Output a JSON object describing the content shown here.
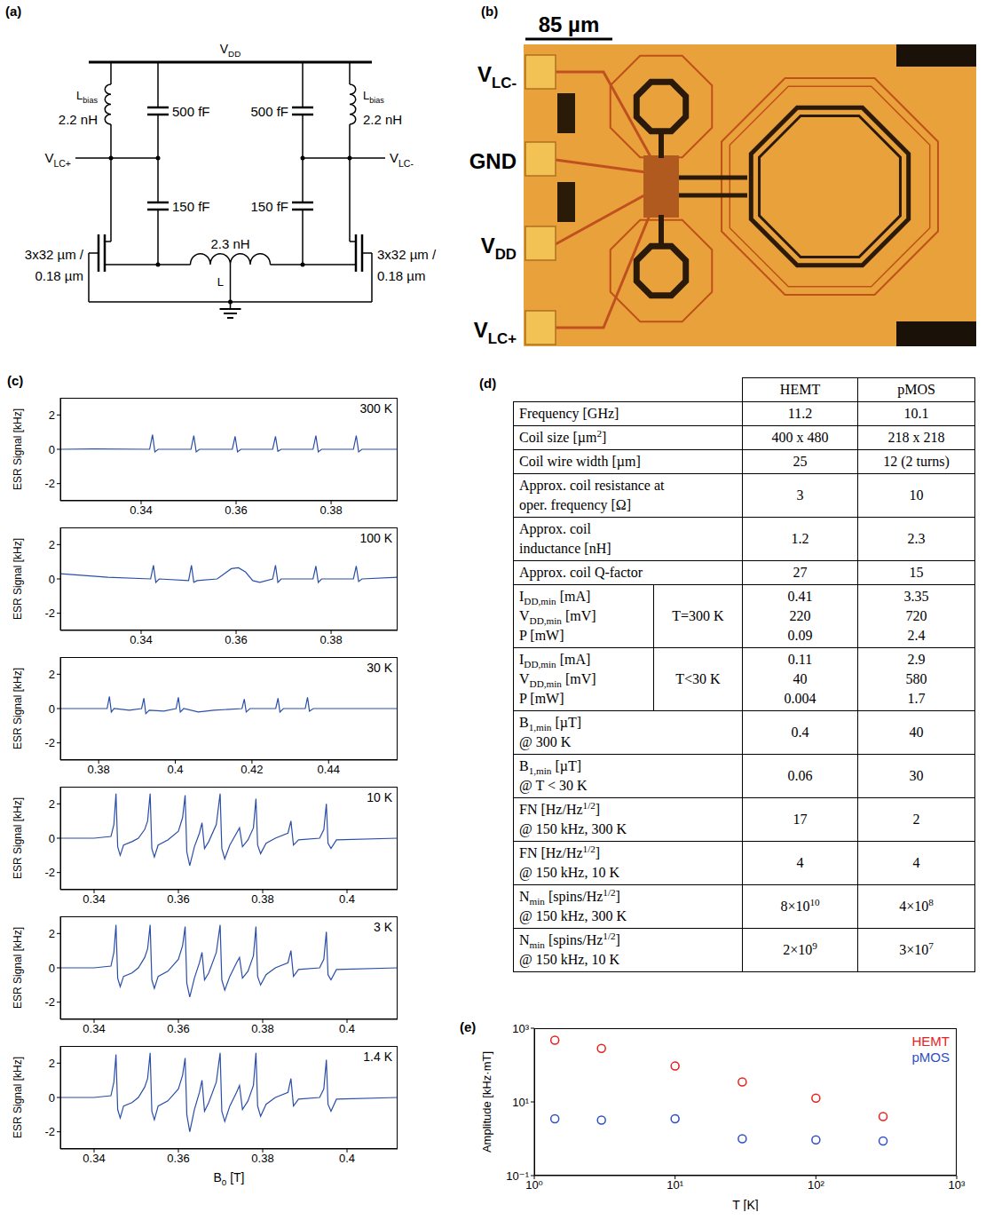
{
  "circuit": {
    "panel": "(a)",
    "supply": [
      "V",
      {
        "sub": "DD"
      }
    ],
    "bias_inductor": {
      "name": [
        "L",
        {
          "sub": "bias"
        }
      ],
      "value": "2.2 nH"
    },
    "supply_capacitor": "500 fF",
    "feedback_capacitor": "150 fF",
    "outputs": {
      "left": [
        "V",
        {
          "sub": "LC+"
        }
      ],
      "right": [
        "V",
        {
          "sub": "LC-"
        }
      ]
    },
    "transistor": [
      "3x32 µm /",
      "0.18 µm"
    ],
    "tank_inductor": {
      "name": "L",
      "value": "2.3 nH"
    }
  },
  "micrograph": {
    "panel": "(b)",
    "scale_bar": "85 µm",
    "pads": [
      [
        "V",
        {
          "sub": "LC-"
        }
      ],
      "GND",
      [
        "V",
        {
          "sub": "DD"
        }
      ],
      [
        "V",
        {
          "sub": "LC+"
        }
      ]
    ]
  },
  "chart_data": [
    {
      "type": "line",
      "panel": "(c)",
      "annotation": "300 K",
      "y_label": "ESR Signal [kHz]",
      "color": "#2a4ea8",
      "grid": false,
      "xlim": [
        0.323,
        0.394
      ],
      "xticks": [
        0.34,
        0.36,
        0.38
      ],
      "ylim": [
        -3,
        3
      ],
      "yticks": [
        -2,
        0,
        2
      ],
      "x": [
        0.323,
        0.33,
        0.3418,
        0.3424,
        0.3429,
        0.3436,
        0.3505,
        0.3511,
        0.3516,
        0.3523,
        0.3592,
        0.3598,
        0.3603,
        0.361,
        0.3677,
        0.3683,
        0.3688,
        0.3695,
        0.3762,
        0.3768,
        0.3773,
        0.378,
        0.3847,
        0.3853,
        0.3858,
        0.3865,
        0.394
      ],
      "values": [
        0,
        0.02,
        0,
        0.85,
        -0.15,
        0,
        0,
        0.8,
        -0.15,
        0,
        0,
        0.75,
        -0.15,
        0,
        0,
        0.75,
        -0.12,
        0,
        0,
        0.8,
        -0.15,
        0,
        0,
        0.8,
        -0.15,
        0,
        0
      ]
    },
    {
      "type": "line",
      "annotation": "100 K",
      "y_label": "ESR Signal [kHz]",
      "color": "#2a4ea8",
      "grid": false,
      "xlim": [
        0.323,
        0.394
      ],
      "xticks": [
        0.34,
        0.36,
        0.38
      ],
      "ylim": [
        -3,
        3
      ],
      "yticks": [
        -2,
        0,
        2
      ],
      "x": [
        0.323,
        0.333,
        0.342,
        0.3426,
        0.3431,
        0.3438,
        0.35,
        0.3506,
        0.3511,
        0.3518,
        0.356,
        0.3575,
        0.359,
        0.3605,
        0.362,
        0.3635,
        0.365,
        0.3677,
        0.3683,
        0.3688,
        0.3695,
        0.3762,
        0.3768,
        0.3773,
        0.378,
        0.3847,
        0.3853,
        0.3858,
        0.3865,
        0.394
      ],
      "values": [
        0.3,
        0.1,
        0,
        0.8,
        -0.2,
        0,
        -0.1,
        0.8,
        -0.2,
        -0.1,
        0,
        0.3,
        0.6,
        0.65,
        0.4,
        -0.1,
        -0.2,
        0,
        0.8,
        -0.2,
        0,
        0,
        0.75,
        -0.2,
        0,
        0,
        0.75,
        -0.15,
        0,
        0.1
      ]
    },
    {
      "type": "line",
      "annotation": "30 K",
      "y_label": "ESR Signal [kHz]",
      "color": "#2a4ea8",
      "grid": false,
      "xlim": [
        0.37,
        0.458
      ],
      "xticks": [
        0.38,
        0.4,
        0.42,
        0.44
      ],
      "ylim": [
        -3,
        3
      ],
      "yticks": [
        -2,
        0,
        2
      ],
      "x": [
        0.37,
        0.3822,
        0.3828,
        0.3833,
        0.384,
        0.388,
        0.3912,
        0.3918,
        0.3923,
        0.3932,
        0.397,
        0.4002,
        0.4008,
        0.4013,
        0.4022,
        0.406,
        0.41,
        0.4174,
        0.418,
        0.4185,
        0.4195,
        0.4262,
        0.4268,
        0.4273,
        0.4282,
        0.4339,
        0.4345,
        0.435,
        0.436,
        0.458
      ],
      "values": [
        0,
        0,
        0.7,
        -0.2,
        0,
        -0.1,
        0,
        0.6,
        -0.3,
        -0.1,
        -0.15,
        0,
        0.65,
        -0.2,
        0,
        -0.2,
        -0.1,
        0,
        0.55,
        -0.2,
        0,
        0,
        0.6,
        -0.2,
        0,
        0,
        0.65,
        -0.15,
        0,
        0
      ]
    },
    {
      "type": "line",
      "annotation": "10 K",
      "y_label": "ESR Signal [kHz]",
      "color": "#2a4ea8",
      "grid": false,
      "xlim": [
        0.332,
        0.412
      ],
      "xticks": [
        0.34,
        0.36,
        0.38,
        0.4
      ],
      "ylim": [
        -3,
        3
      ],
      "yticks": [
        -2,
        0,
        2
      ],
      "x": [
        0.332,
        0.34,
        0.344,
        0.3447,
        0.3452,
        0.3456,
        0.3462,
        0.347,
        0.349,
        0.3505,
        0.352,
        0.3527,
        0.3533,
        0.3537,
        0.3543,
        0.3552,
        0.3575,
        0.36,
        0.361,
        0.3616,
        0.362,
        0.3627,
        0.3638,
        0.365,
        0.3656,
        0.3662,
        0.3672,
        0.369,
        0.3699,
        0.3703,
        0.371,
        0.3722,
        0.3738,
        0.3745,
        0.3752,
        0.3765,
        0.3778,
        0.3784,
        0.3788,
        0.3795,
        0.3808,
        0.383,
        0.386,
        0.3867,
        0.3873,
        0.3885,
        0.3935,
        0.3945,
        0.3951,
        0.3955,
        0.3962,
        0.3975,
        0.412
      ],
      "values": [
        0,
        0,
        0.1,
        0.8,
        2.6,
        -0.5,
        -1.0,
        -0.4,
        -0.2,
        0,
        0.5,
        1.0,
        2.6,
        -0.6,
        -1.1,
        -0.4,
        -0.1,
        0.4,
        1.2,
        2.5,
        -0.8,
        -1.6,
        -0.5,
        0.3,
        0.9,
        -0.6,
        -0.2,
        0.8,
        2.6,
        -0.6,
        -1.2,
        -0.4,
        0.3,
        0.6,
        -0.5,
        -0.1,
        0.6,
        2.3,
        -0.4,
        -0.9,
        -0.3,
        0,
        0.3,
        1.0,
        -0.4,
        -0.1,
        0,
        0.5,
        2.0,
        -0.3,
        -0.6,
        -0.1,
        0
      ]
    },
    {
      "type": "line",
      "annotation": "3 K",
      "y_label": "ESR Signal [kHz]",
      "color": "#2a4ea8",
      "grid": false,
      "xlim": [
        0.332,
        0.412
      ],
      "xticks": [
        0.34,
        0.36,
        0.38,
        0.4
      ],
      "ylim": [
        -3,
        3
      ],
      "yticks": [
        -2,
        0,
        2
      ],
      "x": [
        0.332,
        0.34,
        0.344,
        0.3447,
        0.3452,
        0.3456,
        0.3462,
        0.347,
        0.349,
        0.3505,
        0.352,
        0.3527,
        0.3533,
        0.3537,
        0.3543,
        0.3552,
        0.3575,
        0.36,
        0.361,
        0.3616,
        0.362,
        0.3627,
        0.3638,
        0.365,
        0.3656,
        0.3662,
        0.3672,
        0.369,
        0.3699,
        0.3703,
        0.371,
        0.3722,
        0.3738,
        0.3745,
        0.3752,
        0.3765,
        0.3778,
        0.3784,
        0.3788,
        0.3795,
        0.3808,
        0.383,
        0.386,
        0.3867,
        0.3873,
        0.3885,
        0.3935,
        0.3945,
        0.3951,
        0.3955,
        0.3962,
        0.3975,
        0.412
      ],
      "values": [
        0,
        0,
        0.1,
        0.9,
        2.5,
        -0.6,
        -1.1,
        -0.5,
        -0.3,
        0,
        0.6,
        1.1,
        2.5,
        -0.7,
        -1.2,
        -0.5,
        -0.2,
        0.5,
        1.3,
        2.4,
        -0.9,
        -1.7,
        -0.6,
        0.3,
        0.9,
        -0.7,
        -0.3,
        0.9,
        2.5,
        -0.7,
        -1.3,
        -0.5,
        0.3,
        0.6,
        -0.6,
        -0.2,
        0.7,
        2.4,
        -0.5,
        -1.0,
        -0.4,
        0,
        0.3,
        1.0,
        -0.5,
        -0.1,
        0,
        0.5,
        2.1,
        -0.4,
        -0.7,
        -0.1,
        0
      ]
    },
    {
      "type": "line",
      "annotation": "1.4 K",
      "y_label": "ESR Signal [kHz]",
      "x_label": [
        "B",
        {
          "sub": "0"
        },
        " [T]"
      ],
      "color": "#2a4ea8",
      "grid": false,
      "xlim": [
        0.332,
        0.412
      ],
      "xticks": [
        0.34,
        0.36,
        0.38,
        0.4
      ],
      "ylim": [
        -3,
        3
      ],
      "yticks": [
        -2,
        0,
        2
      ],
      "x": [
        0.332,
        0.34,
        0.344,
        0.3447,
        0.3452,
        0.3456,
        0.3462,
        0.347,
        0.349,
        0.3505,
        0.352,
        0.3527,
        0.3533,
        0.3537,
        0.3543,
        0.3552,
        0.3575,
        0.36,
        0.361,
        0.3616,
        0.362,
        0.3627,
        0.3638,
        0.365,
        0.3656,
        0.3662,
        0.3672,
        0.369,
        0.3699,
        0.3703,
        0.371,
        0.3722,
        0.3738,
        0.3745,
        0.3752,
        0.3765,
        0.3778,
        0.3784,
        0.3788,
        0.3795,
        0.3808,
        0.383,
        0.386,
        0.3867,
        0.3873,
        0.3885,
        0.3935,
        0.3945,
        0.3951,
        0.3955,
        0.3962,
        0.3975,
        0.412
      ],
      "values": [
        0,
        0,
        0.1,
        0.9,
        2.5,
        -0.7,
        -1.2,
        -0.5,
        -0.3,
        0,
        0.6,
        1.1,
        2.6,
        -0.8,
        -1.3,
        -0.5,
        -0.2,
        0.5,
        1.3,
        2.3,
        -1.0,
        -2.0,
        -0.7,
        0.3,
        1.0,
        -0.8,
        -0.3,
        0.9,
        2.6,
        -0.8,
        -1.4,
        -0.5,
        0.3,
        0.7,
        -0.7,
        -0.2,
        0.7,
        2.6,
        -0.5,
        -1.1,
        -0.4,
        0,
        0.3,
        1.1,
        -0.5,
        -0.1,
        0,
        0.5,
        2.2,
        -0.4,
        -0.8,
        -0.1,
        0
      ]
    },
    {
      "type": "scatter",
      "panel": "(e)",
      "x_label": "T [K]",
      "y_label": "Amplitude [kHz·mT]",
      "log": true,
      "grid": false,
      "legend": "upper right",
      "x": [
        1.4,
        3,
        10,
        30,
        100,
        300
      ],
      "series": [
        {
          "name": "HEMT",
          "color": "#e8211c",
          "marker": "circle",
          "values": [
            473,
            282,
            94,
            35,
            12.6,
            4
          ]
        },
        {
          "name": "pMOS",
          "color": "#2f4fc4",
          "marker": "circle",
          "values": [
            3.5,
            3.2,
            3.5,
            1,
            0.93,
            0.87
          ]
        }
      ],
      "xlim": [
        1,
        1000
      ],
      "xticks": [
        {
          "value": 1,
          "label": "10⁰"
        },
        {
          "value": 10,
          "label": "10¹"
        },
        {
          "value": 100,
          "label": "10²"
        },
        {
          "value": 1000,
          "label": "10³"
        }
      ],
      "ylim": [
        0.1,
        1000
      ],
      "yticks": [
        {
          "value": 0.1,
          "label": "10⁻¹"
        },
        {
          "value": 10,
          "label": "10¹"
        },
        {
          "value": 1000,
          "label": "10³"
        }
      ]
    }
  ],
  "table": {
    "panel": "(d)",
    "columns": [
      "HEMT",
      "pMOS"
    ],
    "rows": [
      {
        "label": [
          "Frequency [GHz]"
        ],
        "values": [
          "11.2",
          "10.1"
        ]
      },
      {
        "label": [
          [
            "Coil size [µm",
            {
              "sup": "2"
            },
            "]"
          ]
        ],
        "values": [
          "400 x 480",
          "218 x 218"
        ]
      },
      {
        "label": [
          "Coil wire width [µm]"
        ],
        "values": [
          "25",
          "12 (2 turns)"
        ]
      },
      {
        "label": [
          "Approx. coil resistance at",
          "oper. frequency [Ω]"
        ],
        "values": [
          "3",
          "10"
        ]
      },
      {
        "label": [
          "Approx. coil",
          "inductance [nH]"
        ],
        "values": [
          "1.2",
          "2.3"
        ]
      },
      {
        "label": [
          "Approx. coil Q-factor"
        ],
        "values": [
          "27",
          "15"
        ]
      },
      {
        "label": [
          [
            "I",
            {
              "sub": "DD,min"
            },
            " [mA]"
          ],
          [
            "V",
            {
              "sub": "DD,min"
            },
            " [mV]"
          ],
          "P [mW]"
        ],
        "group": "T=300 K",
        "values": [
          [
            "0.41",
            "220",
            "0.09"
          ],
          [
            "3.35",
            "720",
            "2.4"
          ]
        ]
      },
      {
        "label": [
          [
            "I",
            {
              "sub": "DD,min"
            },
            " [mA]"
          ],
          [
            "V",
            {
              "sub": "DD,min"
            },
            " [mV]"
          ],
          "P [mW]"
        ],
        "group": "T<30 K",
        "values": [
          [
            "0.11",
            "40",
            "0.004"
          ],
          [
            "2.9",
            "580",
            "1.7"
          ]
        ]
      },
      {
        "label": [
          [
            "B",
            {
              "sub": "1,min"
            },
            " [µT]"
          ],
          "@ 300 K"
        ],
        "values": [
          "0.4",
          "40"
        ]
      },
      {
        "label": [
          [
            "B",
            {
              "sub": "1,min"
            },
            " [µT]"
          ],
          "@ T < 30 K"
        ],
        "values": [
          "0.06",
          "30"
        ]
      },
      {
        "label": [
          [
            "FN [Hz/Hz",
            {
              "sup": "1/2"
            },
            "]"
          ],
          "@ 150 kHz, 300 K"
        ],
        "values": [
          "17",
          "2"
        ]
      },
      {
        "label": [
          [
            "FN [Hz/Hz",
            {
              "sup": "1/2"
            },
            "]"
          ],
          "@ 150 kHz, 10 K"
        ],
        "values": [
          "4",
          "4"
        ]
      },
      {
        "label": [
          [
            "N",
            {
              "sub": "min"
            },
            " [spins/Hz",
            {
              "sup": "1/2"
            },
            "]"
          ],
          "@ 150 kHz, 300 K"
        ],
        "values": [
          [
            "8×10",
            {
              "sup": "10"
            }
          ],
          [
            "4×10",
            {
              "sup": "8"
            }
          ]
        ]
      },
      {
        "label": [
          [
            "N",
            {
              "sub": "min"
            },
            " [spins/Hz",
            {
              "sup": "1/2"
            },
            "]"
          ],
          "@ 150 kHz, 10 K"
        ],
        "values": [
          [
            "2×10",
            {
              "sup": "9"
            }
          ],
          [
            "3×10",
            {
              "sup": "7"
            }
          ]
        ]
      }
    ]
  }
}
